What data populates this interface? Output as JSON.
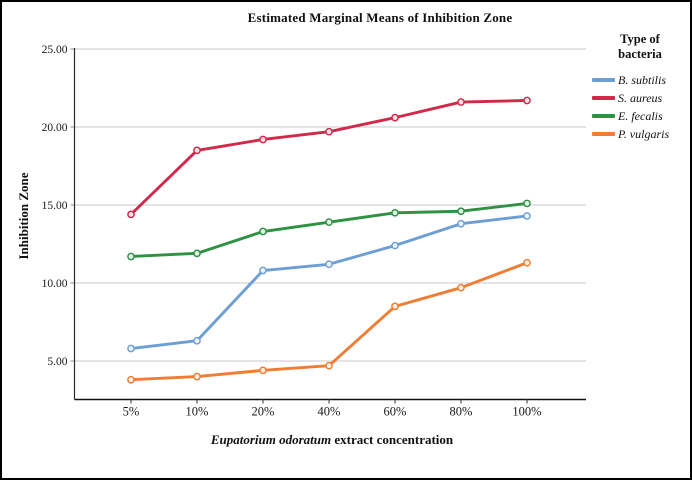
{
  "figure": {
    "title": "Estimated Marginal Means of Inhibition Zone",
    "background": "#ffffff",
    "border_color": "#000000"
  },
  "axes": {
    "x_title_species": "Eupatorium odoratum",
    "x_title_rest": " extract concentration",
    "y_title": "Inhibition Zone",
    "axis_line_color": "#2a2a2a",
    "gridline_color": "#c9c9c9",
    "tick_color": "#9a9a9a"
  },
  "legend": {
    "title": "Type of\nbacteria"
  },
  "chart_data": {
    "type": "line",
    "title": "Estimated Marginal Means of Inhibition Zone",
    "xlabel": "Eupatorium odoratum extract concentration",
    "ylabel": "Inhibition Zone",
    "categories": [
      "5%",
      "10%",
      "20%",
      "40%",
      "60%",
      "80%",
      "100%"
    ],
    "y_tick_labels": [
      "5.00",
      "10.00",
      "15.00",
      "20.00",
      "25.00"
    ],
    "y_tick_values": [
      5,
      10,
      15,
      20,
      25
    ],
    "ylim": [
      2.7,
      25.0
    ],
    "grid": true,
    "legend_position": "right",
    "legend_title": "Type of bacteria",
    "marker": "open-circle",
    "series": [
      {
        "name": "B. subtilis",
        "color": "#6E9FD4",
        "values": [
          5.8,
          6.3,
          10.8,
          11.2,
          12.4,
          13.8,
          14.3
        ]
      },
      {
        "name": "S. aureus",
        "color": "#D2294B",
        "values": [
          14.4,
          18.5,
          19.2,
          19.7,
          20.6,
          21.6,
          21.7
        ]
      },
      {
        "name": "E. fecalis",
        "color": "#2F9142",
        "values": [
          11.7,
          11.9,
          13.3,
          13.9,
          14.5,
          14.6,
          15.1
        ]
      },
      {
        "name": "P. vulgaris",
        "color": "#EF7D33",
        "values": [
          3.8,
          4.0,
          4.4,
          4.7,
          8.5,
          9.7,
          11.3
        ]
      }
    ]
  }
}
